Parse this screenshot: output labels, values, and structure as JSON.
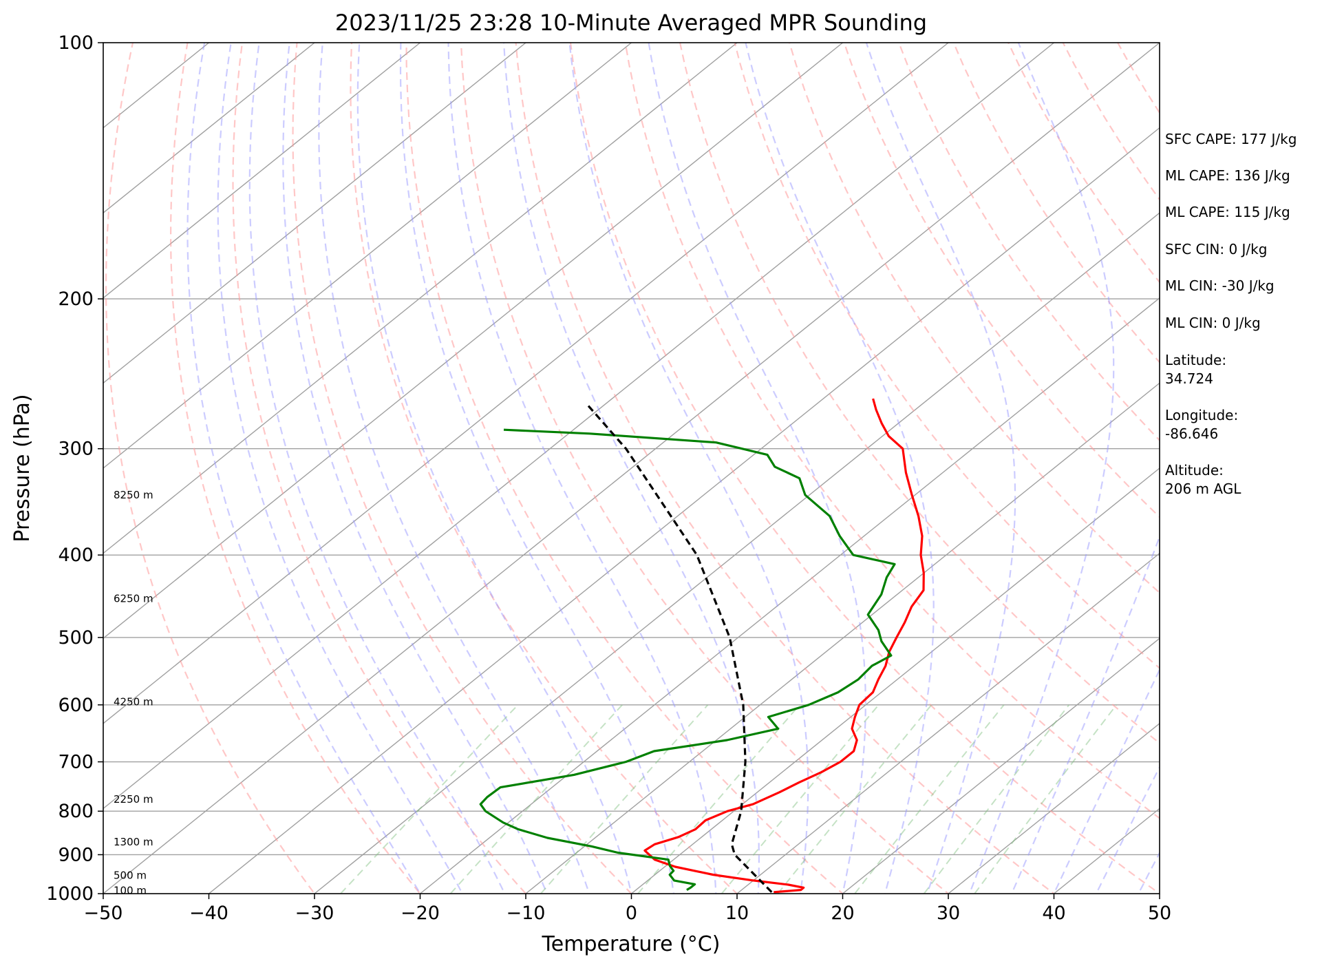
{
  "chart_data": {
    "type": "line",
    "title": "2023/11/25 23:28 10-Minute Averaged MPR Sounding",
    "xlabel": "Temperature (°C)",
    "ylabel": "Pressure (hPa)",
    "xlim": [
      -50,
      50
    ],
    "ylim": [
      1000,
      100
    ],
    "y_scale": "log",
    "skew": "skew-T log-p",
    "grid": true,
    "x_ticks": [
      "−50",
      "−40",
      "−30",
      "−20",
      "−10",
      "0",
      "10",
      "20",
      "30",
      "40",
      "50"
    ],
    "y_ticks": [
      "100",
      "200",
      "300",
      "400",
      "500",
      "600",
      "700",
      "800",
      "900",
      "1000"
    ],
    "height_labels": [
      {
        "label": "8250 m",
        "p": 340
      },
      {
        "label": "6250 m",
        "p": 450
      },
      {
        "label": "4250 m",
        "p": 595
      },
      {
        "label": "2250 m",
        "p": 775
      },
      {
        "label": "1300 m",
        "p": 870
      },
      {
        "label": "500 m",
        "p": 952
      },
      {
        "label": "100 m",
        "p": 992
      }
    ],
    "series": [
      {
        "color": "#ff0000",
        "points": [
          {
            "p": 996,
            "t": 13.3
          },
          {
            "p": 993,
            "t": 14.5
          },
          {
            "p": 990,
            "t": 15.6
          },
          {
            "p": 984,
            "t": 15.6
          },
          {
            "p": 976,
            "t": 13.8
          },
          {
            "p": 965,
            "t": 10.0
          },
          {
            "p": 950,
            "t": 5.5
          },
          {
            "p": 930,
            "t": 1.0
          },
          {
            "p": 912,
            "t": -1.8
          },
          {
            "p": 890,
            "t": -3.8
          },
          {
            "p": 875,
            "t": -3.6
          },
          {
            "p": 858,
            "t": -2.2
          },
          {
            "p": 840,
            "t": -1.5
          },
          {
            "p": 820,
            "t": -1.6
          },
          {
            "p": 800,
            "t": -0.6
          },
          {
            "p": 785,
            "t": 1.0
          },
          {
            "p": 760,
            "t": 2.1
          },
          {
            "p": 740,
            "t": 2.8
          },
          {
            "p": 720,
            "t": 3.7
          },
          {
            "p": 700,
            "t": 4.3
          },
          {
            "p": 680,
            "t": 4.3
          },
          {
            "p": 660,
            "t": 3.3
          },
          {
            "p": 640,
            "t": 1.5
          },
          {
            "p": 620,
            "t": 0.4
          },
          {
            "p": 600,
            "t": -0.6
          },
          {
            "p": 580,
            "t": -0.8
          },
          {
            "p": 560,
            "t": -1.8
          },
          {
            "p": 540,
            "t": -2.7
          },
          {
            "p": 520,
            "t": -4.0
          },
          {
            "p": 500,
            "t": -5.0
          },
          {
            "p": 480,
            "t": -6.0
          },
          {
            "p": 460,
            "t": -7.2
          },
          {
            "p": 440,
            "t": -8.0
          },
          {
            "p": 420,
            "t": -10.0
          },
          {
            "p": 400,
            "t": -12.4
          },
          {
            "p": 380,
            "t": -14.5
          },
          {
            "p": 360,
            "t": -17.2
          },
          {
            "p": 340,
            "t": -20.3
          },
          {
            "p": 320,
            "t": -23.5
          },
          {
            "p": 300,
            "t": -26.6
          },
          {
            "p": 290,
            "t": -29.4
          },
          {
            "p": 280,
            "t": -31.6
          },
          {
            "p": 270,
            "t": -33.7
          },
          {
            "p": 262,
            "t": -35.3
          }
        ]
      },
      {
        "color": "#008000",
        "points": [
          {
            "p": 990,
            "t": 4.8
          },
          {
            "p": 984,
            "t": 4.9
          },
          {
            "p": 975,
            "t": 4.9
          },
          {
            "p": 965,
            "t": 2.5
          },
          {
            "p": 950,
            "t": 1.4
          },
          {
            "p": 940,
            "t": 1.3
          },
          {
            "p": 928,
            "t": 0.4
          },
          {
            "p": 912,
            "t": -0.5
          },
          {
            "p": 895,
            "t": -6.1
          },
          {
            "p": 880,
            "t": -9.3
          },
          {
            "p": 860,
            "t": -14.5
          },
          {
            "p": 840,
            "t": -18.3
          },
          {
            "p": 825,
            "t": -20.5
          },
          {
            "p": 800,
            "t": -23.5
          },
          {
            "p": 785,
            "t": -24.8
          },
          {
            "p": 770,
            "t": -25.0
          },
          {
            "p": 750,
            "t": -24.9
          },
          {
            "p": 725,
            "t": -19.4
          },
          {
            "p": 700,
            "t": -16.0
          },
          {
            "p": 680,
            "t": -14.6
          },
          {
            "p": 660,
            "t": -9.0
          },
          {
            "p": 640,
            "t": -5.5
          },
          {
            "p": 620,
            "t": -7.8
          },
          {
            "p": 600,
            "t": -5.4
          },
          {
            "p": 580,
            "t": -4.1
          },
          {
            "p": 560,
            "t": -3.7
          },
          {
            "p": 540,
            "t": -4.0
          },
          {
            "p": 525,
            "t": -3.4
          },
          {
            "p": 505,
            "t": -6.0
          },
          {
            "p": 490,
            "t": -7.6
          },
          {
            "p": 470,
            "t": -10.4
          },
          {
            "p": 445,
            "t": -11.5
          },
          {
            "p": 425,
            "t": -13.0
          },
          {
            "p": 410,
            "t": -13.8
          },
          {
            "p": 400,
            "t": -18.8
          },
          {
            "p": 380,
            "t": -22.3
          },
          {
            "p": 360,
            "t": -25.6
          },
          {
            "p": 340,
            "t": -30.4
          },
          {
            "p": 325,
            "t": -32.9
          },
          {
            "p": 315,
            "t": -36.6
          },
          {
            "p": 305,
            "t": -38.7
          },
          {
            "p": 295,
            "t": -45.0
          },
          {
            "p": 288,
            "t": -58.0
          },
          {
            "p": 285,
            "t": -66.6
          }
        ]
      },
      {
        "color": "#000000",
        "style": "dashed",
        "points": [
          {
            "p": 996,
            "t": 13.1
          },
          {
            "p": 900,
            "t": 5.2
          },
          {
            "p": 875,
            "t": 3.7
          },
          {
            "p": 800,
            "t": 0.7
          },
          {
            "p": 700,
            "t": -4.7
          },
          {
            "p": 600,
            "t": -11.6
          },
          {
            "p": 500,
            "t": -20.8
          },
          {
            "p": 400,
            "t": -33.6
          },
          {
            "p": 300,
            "t": -52.8
          },
          {
            "p": 265,
            "t": -62.0
          }
        ]
      }
    ]
  },
  "stats": [
    "SFC CAPE: 177 J/kg",
    "ML CAPE: 136 J/kg",
    "ML CAPE: 115 J/kg",
    "SFC CIN: 0 J/kg",
    "ML CIN: -30 J/kg",
    "ML CIN: 0 J/kg"
  ],
  "location": [
    {
      "label": "Latitude:",
      "value": "34.724"
    },
    {
      "label": "Longitude:",
      "value": "-86.646"
    },
    {
      "label": "Altitude:",
      "value": "206 m AGL"
    }
  ],
  "colors": {
    "temperature": "#ff0000",
    "dewpoint": "#008000",
    "parcel": "#000000",
    "dry_adiabat": "#ff9999",
    "moist_adiabat": "#9999ff",
    "mixing_ratio": "#7fbf7f",
    "isotherm": "#a0a0a0",
    "isobar": "#a0a0a0"
  }
}
